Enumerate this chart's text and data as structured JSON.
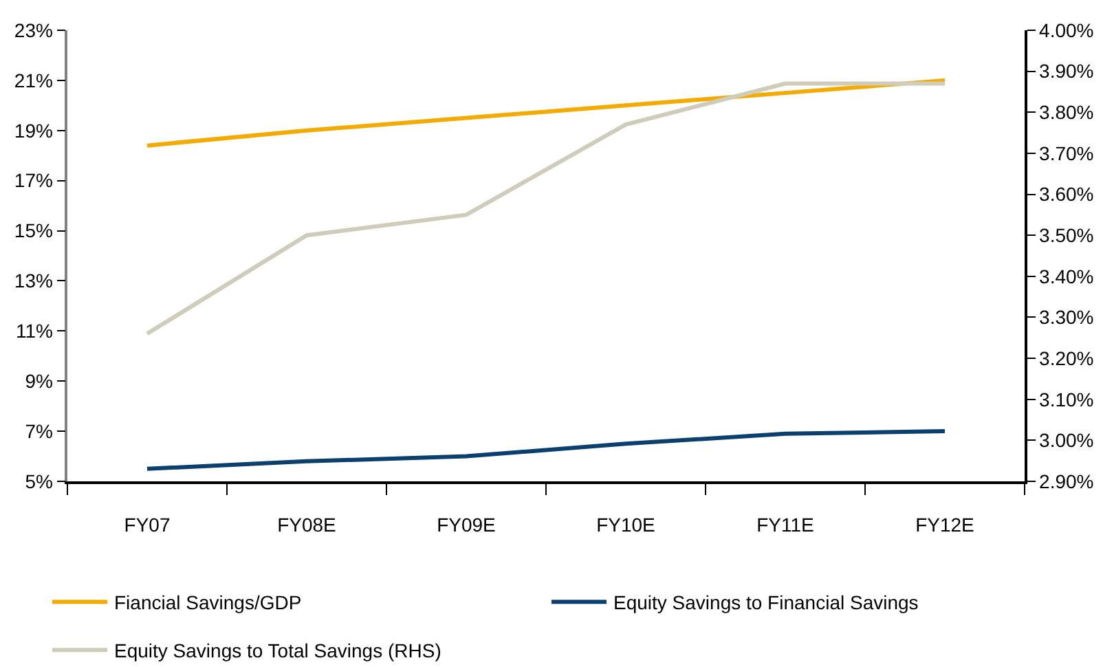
{
  "chart_data": {
    "type": "line",
    "categories": [
      "FY07",
      "FY08E",
      "FY09E",
      "FY10E",
      "FY11E",
      "FY12E"
    ],
    "series": [
      {
        "name": "Fiancial Savings/GDP",
        "color": "#f4ab00",
        "values": [
          18.4,
          19.0,
          19.5,
          20.0,
          20.5,
          21.0
        ]
      },
      {
        "name": "Equity Savings to Financial Savings",
        "color": "#0b3f6e",
        "values": [
          5.5,
          5.8,
          6.0,
          6.5,
          6.9,
          7.0
        ]
      },
      {
        "name": "Equity Savings to Total Savings (RHS)",
        "color": "#cfccba",
        "axis": "y2",
        "values": [
          3.26,
          3.5,
          3.55,
          3.77,
          3.87,
          3.87
        ]
      }
    ],
    "ylim": [
      5,
      23
    ],
    "yticks": [
      {
        "value": 5,
        "label": "5%"
      },
      {
        "value": 7,
        "label": "7%"
      },
      {
        "value": 9,
        "label": "9%"
      },
      {
        "value": 11,
        "label": "11%"
      },
      {
        "value": 13,
        "label": "13%"
      },
      {
        "value": 15,
        "label": "15%"
      },
      {
        "value": 17,
        "label": "17%"
      },
      {
        "value": 19,
        "label": "19%"
      },
      {
        "value": 21,
        "label": "21%"
      },
      {
        "value": 23,
        "label": "23%"
      }
    ],
    "y2lim": [
      2.9,
      4.0
    ],
    "y2ticks": [
      {
        "value": 2.9,
        "label": "2.90%"
      },
      {
        "value": 3.0,
        "label": "3.00%"
      },
      {
        "value": 3.1,
        "label": "3.10%"
      },
      {
        "value": 3.2,
        "label": "3.20%"
      },
      {
        "value": 3.3,
        "label": "3.30%"
      },
      {
        "value": 3.4,
        "label": "3.40%"
      },
      {
        "value": 3.5,
        "label": "3.50%"
      },
      {
        "value": 3.6,
        "label": "3.60%"
      },
      {
        "value": 3.7,
        "label": "3.70%"
      },
      {
        "value": 3.8,
        "label": "3.80%"
      },
      {
        "value": 3.9,
        "label": "3.90%"
      },
      {
        "value": 4.0,
        "label": "4.00%"
      }
    ],
    "legend": "bottom",
    "line_style": "solid"
  }
}
